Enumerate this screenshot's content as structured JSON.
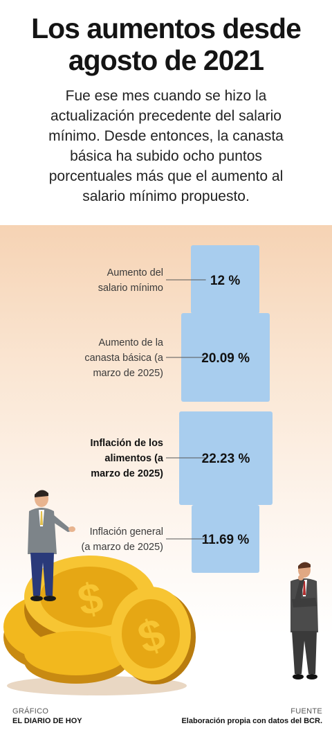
{
  "title": "Los aumentos desde agosto de 2021",
  "subtitle": "Fue ese mes cuando se hizo la actualización precedente del salario mínimo. Desde entonces, la canasta básica ha subido ocho puntos porcentuales más que el aumento al salario mínimo propuesto.",
  "chart_data": {
    "type": "bar",
    "unit": "%",
    "categories": [
      "Aumento del salario mínimo",
      "Aumento de la canasta básica (a marzo de 2025)",
      "Inflación de los alimentos (a marzo de 2025)",
      "Inflación general (a marzo de 2025)"
    ],
    "values": [
      12,
      20.09,
      22.23,
      11.69
    ],
    "value_labels": [
      "12 %",
      "20.09 %",
      "22.23 %",
      "11.69 %"
    ],
    "label_lines": [
      [
        "Aumento del",
        "salario mínimo"
      ],
      [
        "Aumento de la",
        "canasta básica (a",
        "marzo de 2025)"
      ],
      [
        "Inflación de los",
        "alimentos (a",
        "marzo de 2025)"
      ],
      [
        "Inflación general",
        "(a marzo de 2025)"
      ]
    ],
    "highlighted": [
      false,
      false,
      true,
      false
    ],
    "bar_color": "#a8cdee"
  },
  "footer": {
    "left_heading": "GRÁFICO",
    "left_text": "EL DIARIO DE HOY",
    "right_heading": "FUENTE",
    "right_text": "Elaboración propia con datos del BCR."
  }
}
